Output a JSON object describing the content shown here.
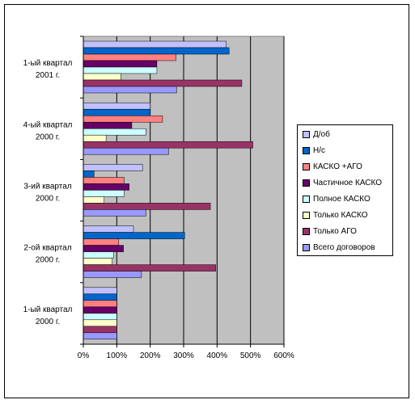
{
  "chart_data": {
    "type": "bar",
    "orientation": "horizontal",
    "categories": [
      [
        "1-ый квартал",
        "2001 г."
      ],
      [
        "4-ый квартал",
        "2000 г."
      ],
      [
        "3-ий квартал",
        "2000 г."
      ],
      [
        "2-ой квартал",
        "2000 г."
      ],
      [
        "1-ый квартал",
        "2000 г."
      ]
    ],
    "xlim": [
      0,
      600
    ],
    "xticks": [
      "0%",
      "100%",
      "200%",
      "300%",
      "400%",
      "500%",
      "600%"
    ],
    "grid": true,
    "legend_position": "right",
    "series": [
      {
        "name": "Д/об",
        "color": "#c0c0ff",
        "values": [
          427,
          200,
          177,
          150,
          100
        ]
      },
      {
        "name": "Н/с",
        "color": "#0066cc",
        "values": [
          436,
          200,
          32,
          303,
          100
        ]
      },
      {
        "name": "КАСКО +АГО",
        "color": "#ff8080",
        "values": [
          277,
          237,
          122,
          106,
          100
        ]
      },
      {
        "name": "Частичное КАСКО",
        "color": "#660066",
        "values": [
          220,
          145,
          137,
          120,
          100
        ]
      },
      {
        "name": "Полное КАСКО",
        "color": "#ccffff",
        "values": [
          220,
          187,
          122,
          90,
          100
        ]
      },
      {
        "name": "Только КАСКО",
        "color": "#ffffcc",
        "values": [
          112,
          68,
          62,
          86,
          100
        ]
      },
      {
        "name": "Только АГО",
        "color": "#993366",
        "values": [
          474,
          507,
          380,
          396,
          100
        ]
      },
      {
        "name": "Всего договоров",
        "color": "#9999ff",
        "values": [
          279,
          255,
          187,
          174,
          100
        ]
      }
    ]
  }
}
